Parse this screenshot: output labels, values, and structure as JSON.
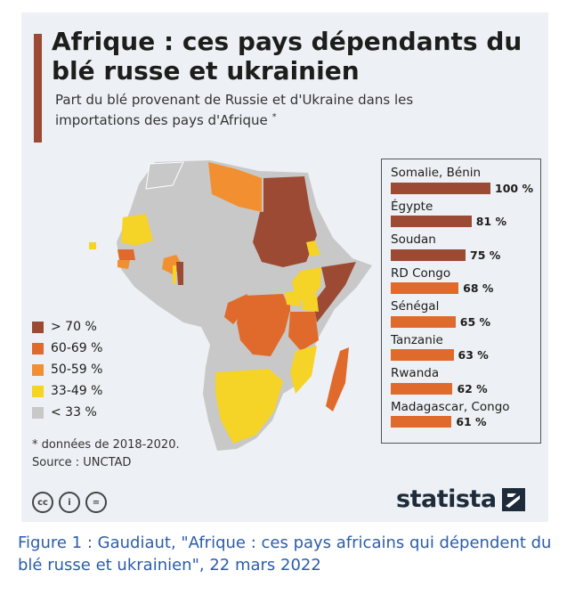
{
  "header": {
    "title": "Afrique : ces pays dépendants du blé russe et ukrainien",
    "subtitle": "Part du blé provenant de Russie et d'Ukraine dans les importations des pays d'Afrique",
    "subtitle_mark": "*"
  },
  "legend": [
    {
      "label": "> 70 %",
      "color": "#9c4a33"
    },
    {
      "label": "60-69 %",
      "color": "#e06a2b"
    },
    {
      "label": "50-59 %",
      "color": "#f28f30"
    },
    {
      "label": "33-49 %",
      "color": "#f5d327"
    },
    {
      "label": "< 33 %",
      "color": "#c8c8c8"
    }
  ],
  "footnote": {
    "note": "* données de 2018-2020.",
    "source": "Source : UNCTAD"
  },
  "chart_data": {
    "type": "bar",
    "categories": [
      "Somalie, Bénin",
      "Égypte",
      "Soudan",
      "RD Congo",
      "Sénégal",
      "Tanzanie",
      "Rwanda",
      "Madagascar, Congo"
    ],
    "values": [
      100,
      81,
      75,
      68,
      65,
      63,
      62,
      61
    ],
    "value_labels": [
      "100 %",
      "81 %",
      "75 %",
      "68 %",
      "65 %",
      "63 %",
      "62 %",
      "61 %"
    ],
    "colors": [
      "#9c4a33",
      "#9c4a33",
      "#9c4a33",
      "#e06a2b",
      "#e06a2b",
      "#e06a2b",
      "#e06a2b",
      "#e06a2b"
    ],
    "xlim": [
      0,
      100
    ],
    "grid": false
  },
  "brand": {
    "name": "statista"
  },
  "license_icons": [
    "cc-icon",
    "attribution-icon",
    "no-derivatives-icon"
  ],
  "license_glyphs": [
    "cc",
    "i",
    "="
  ],
  "caption": "Figure 1 : Gaudiaut, \"Afrique : ces pays africains qui dépendent du blé russe et ukrainien\", 22 mars 2022"
}
